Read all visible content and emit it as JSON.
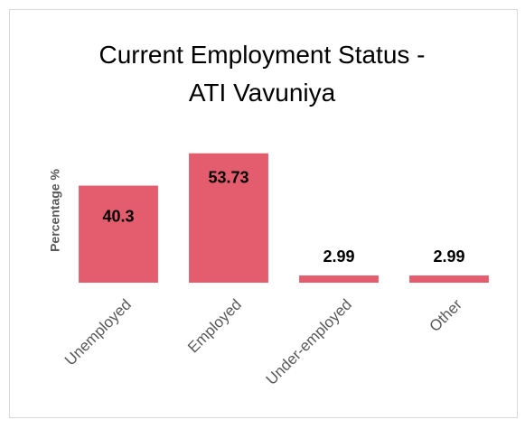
{
  "chart_data": {
    "type": "bar",
    "title": "Current Employment Status - ATI Vavuniya",
    "y_label": "Percentage %",
    "categories": [
      "Unemployed",
      "Employed",
      "Under-employed",
      "Other"
    ],
    "values": [
      40.3,
      53.73,
      2.99,
      2.99
    ],
    "color": "#e35d6e",
    "ylim": [
      0,
      60
    ]
  }
}
